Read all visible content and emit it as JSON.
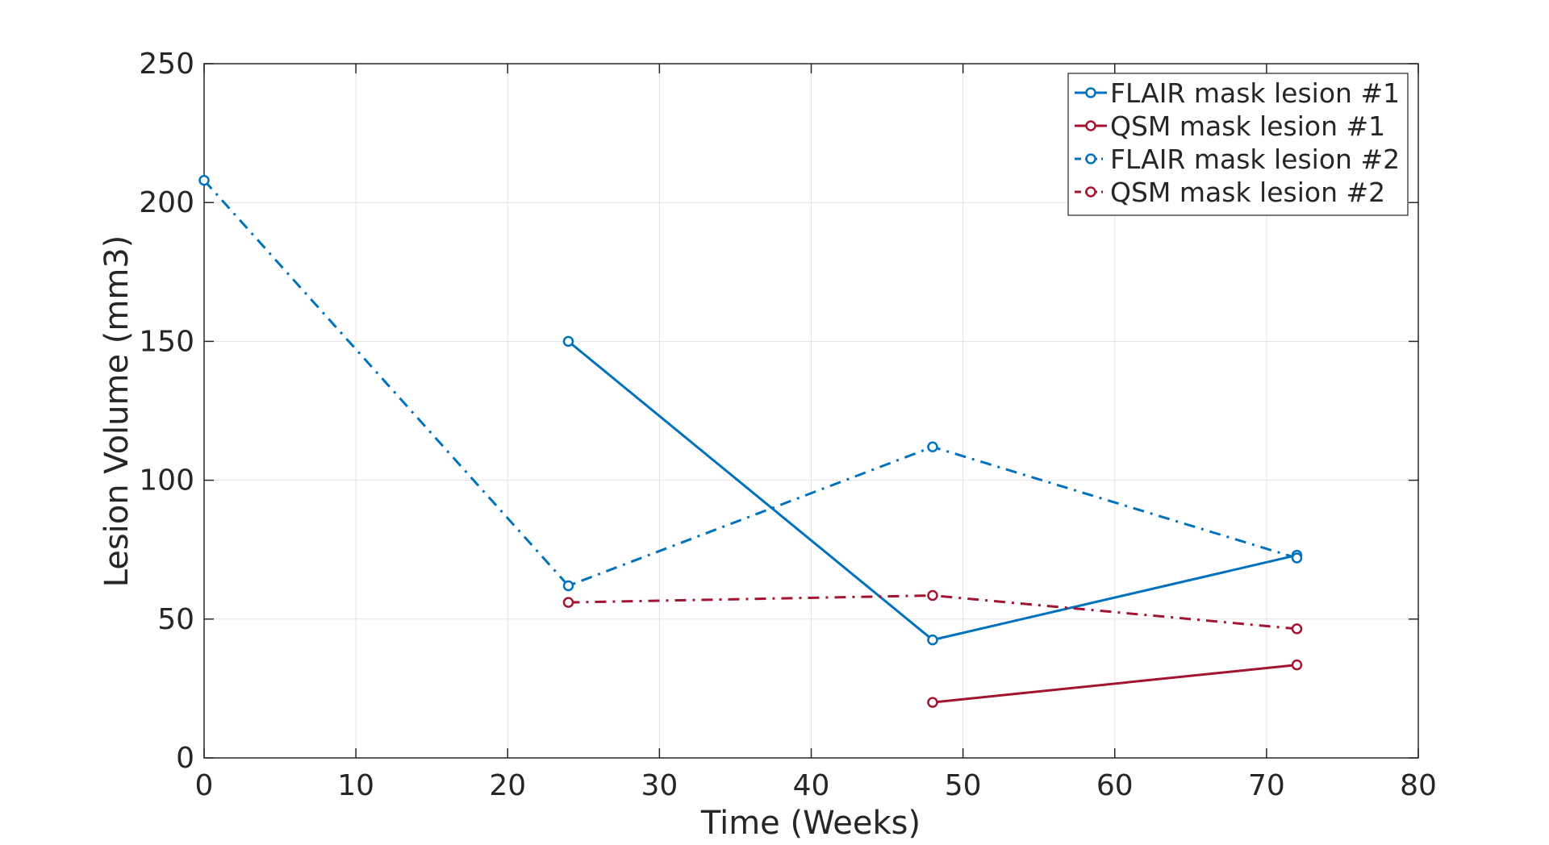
{
  "chart_data": {
    "type": "line",
    "title": "",
    "xlabel": "Time (Weeks)",
    "ylabel": "Lesion Volume (mm3)",
    "xlim": [
      0,
      80
    ],
    "ylim": [
      0,
      250
    ],
    "xticks": [
      0,
      10,
      20,
      30,
      40,
      50,
      60,
      70,
      80
    ],
    "yticks": [
      0,
      50,
      100,
      150,
      200,
      250
    ],
    "grid": true,
    "legend_position": "top-right",
    "series": [
      {
        "name": "FLAIR mask lesion #1",
        "color": "#0072BD",
        "line_style": "solid",
        "marker": "circle",
        "x": [
          24,
          48,
          72
        ],
        "y": [
          150,
          42.5,
          73
        ]
      },
      {
        "name": "QSM mask lesion #1",
        "color": "#A2142F",
        "line_style": "solid",
        "marker": "circle",
        "x": [
          48,
          72
        ],
        "y": [
          20,
          33.5
        ]
      },
      {
        "name": "FLAIR mask lesion #2",
        "color": "#0072BD",
        "line_style": "dash-dot",
        "marker": "circle",
        "x": [
          0,
          24,
          48,
          72
        ],
        "y": [
          208,
          62,
          112,
          72
        ]
      },
      {
        "name": "QSM mask lesion #2",
        "color": "#A2142F",
        "line_style": "dash-dot",
        "marker": "circle",
        "x": [
          24,
          48,
          72
        ],
        "y": [
          56,
          58.5,
          46.5
        ]
      }
    ]
  }
}
